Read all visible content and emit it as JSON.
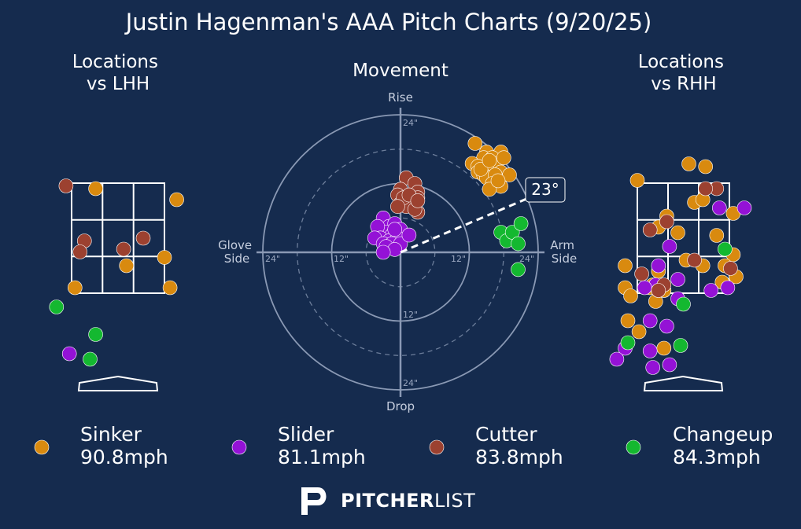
{
  "title": "Justin Hagenman's AAA Pitch Charts (9/20/25)",
  "colors": {
    "background": "#152b4e",
    "Sinker": "#d98a0f",
    "Slider": "#9412d6",
    "Cutter": "#9c4130",
    "Changeup": "#14b830"
  },
  "legend": [
    {
      "pitch": "Sinker",
      "velo": "90.8mph"
    },
    {
      "pitch": "Slider",
      "velo": "81.1mph"
    },
    {
      "pitch": "Cutter",
      "velo": "83.8mph"
    },
    {
      "pitch": "Changeup",
      "velo": "84.3mph"
    }
  ],
  "brand": "PITCHERLIST",
  "brand_parts": [
    "PITCHER",
    "LIST"
  ],
  "brand_icon": "pitcherlist-logo-icon",
  "chart_data": [
    {
      "type": "scatter",
      "title_lines": [
        "Locations",
        "vs LHH"
      ],
      "units": "feet",
      "xlim": [
        -2.0,
        2.0
      ],
      "ylim": [
        0.0,
        5.0
      ],
      "strike_zone": {
        "x": [
          -0.83,
          0.83
        ],
        "z": [
          1.5,
          3.5
        ]
      },
      "series": [
        {
          "name": "Sinker",
          "points": [
            [
              -0.4,
              3.4
            ],
            [
              1.05,
              3.2
            ],
            [
              0.83,
              2.15
            ],
            [
              0.15,
              2.0
            ],
            [
              -0.77,
              1.6
            ],
            [
              0.93,
              1.6
            ]
          ]
        },
        {
          "name": "Slider",
          "points": [
            [
              -0.87,
              0.4
            ]
          ]
        },
        {
          "name": "Cutter",
          "points": [
            [
              -0.93,
              3.45
            ],
            [
              -0.6,
              2.45
            ],
            [
              0.45,
              2.5
            ],
            [
              0.1,
              2.3
            ],
            [
              -0.68,
              2.25
            ]
          ]
        },
        {
          "name": "Changeup",
          "points": [
            [
              -1.1,
              1.25
            ],
            [
              -0.4,
              0.75
            ],
            [
              -0.5,
              0.3
            ]
          ]
        }
      ]
    },
    {
      "type": "scatter",
      "title": "Movement",
      "units": "inches",
      "axis_labels": {
        "top": "Rise",
        "bottom": "Drop",
        "left": [
          "Glove",
          "Side"
        ],
        "right": [
          "Arm",
          "Side"
        ]
      },
      "rings": [
        6,
        12,
        18,
        24
      ],
      "ring_labels": [
        "12\"",
        "24\""
      ],
      "ticks": {
        "top": "24\"",
        "bottom_inner": "12\"",
        "bottom": "24\"",
        "left_outer": "24\"",
        "left_inner": "12\"",
        "right_inner": "12\"",
        "right_outer": "24\""
      },
      "arm_angle_label": "23°",
      "arm_angle_deg": 23,
      "series": [
        {
          "name": "Sinker",
          "points": [
            [
              13,
              19
            ],
            [
              15,
              17.5
            ],
            [
              17.5,
              17.5
            ],
            [
              14.5,
              16.5
            ],
            [
              16,
              16.5
            ],
            [
              16.5,
              15.5
            ],
            [
              18,
              16.5
            ],
            [
              12.5,
              15.5
            ],
            [
              13.5,
              15
            ],
            [
              15,
              14.5
            ],
            [
              17.5,
              14
            ],
            [
              19,
              13.5
            ],
            [
              13.5,
              14
            ],
            [
              14.5,
              13.5
            ],
            [
              15,
              13
            ],
            [
              16.5,
              13.5
            ],
            [
              16,
              12
            ],
            [
              17.5,
              11.5
            ],
            [
              15.5,
              11
            ],
            [
              17,
              12.5
            ],
            [
              14,
              14.5
            ],
            [
              15.5,
              16
            ]
          ]
        },
        {
          "name": "Slider",
          "points": [
            [
              -3,
              6
            ],
            [
              -2,
              4.5
            ],
            [
              -1,
              5
            ],
            [
              -2.5,
              3.5
            ],
            [
              -4,
              4.5
            ],
            [
              -1.5,
              3
            ],
            [
              0,
              4
            ],
            [
              -3.5,
              2.5
            ],
            [
              -2,
              2
            ],
            [
              -0.5,
              2.5
            ],
            [
              -4.5,
              2.5
            ],
            [
              -3,
              1.5
            ],
            [
              -1.5,
              1.5
            ],
            [
              0,
              1.5
            ],
            [
              -2.5,
              1
            ],
            [
              -1,
              0.5
            ],
            [
              -3,
              0
            ],
            [
              1.5,
              3
            ],
            [
              -1,
              4
            ]
          ]
        },
        {
          "name": "Cutter",
          "points": [
            [
              1,
              13
            ],
            [
              0,
              11
            ],
            [
              -0.5,
              10
            ],
            [
              2.5,
              12
            ],
            [
              3,
              10.5
            ],
            [
              3,
              9.5
            ],
            [
              2,
              9
            ],
            [
              0,
              8.5
            ],
            [
              1,
              8
            ],
            [
              3,
              7
            ],
            [
              2.5,
              7.5
            ],
            [
              0.5,
              9.5
            ],
            [
              -0.5,
              8
            ],
            [
              1.5,
              10
            ],
            [
              3,
              9
            ]
          ]
        },
        {
          "name": "Changeup",
          "points": [
            [
              17.5,
              3.5
            ],
            [
              18.5,
              2
            ],
            [
              19.5,
              3.5
            ],
            [
              20.5,
              1.5
            ],
            [
              21,
              5
            ],
            [
              20.5,
              -3
            ]
          ]
        }
      ]
    },
    {
      "type": "scatter",
      "title_lines": [
        "Locations",
        "vs RHH"
      ],
      "units": "feet",
      "xlim": [
        -2.0,
        2.0
      ],
      "ylim": [
        0.0,
        5.0
      ],
      "strike_zone": {
        "x": [
          -0.83,
          0.83
        ],
        "z": [
          1.5,
          3.5
        ]
      },
      "series": [
        {
          "name": "Sinker",
          "points": [
            [
              0.1,
              3.85
            ],
            [
              0.4,
              3.8
            ],
            [
              -0.83,
              3.55
            ],
            [
              0.2,
              3.15
            ],
            [
              0.35,
              3.2
            ],
            [
              -0.3,
              2.9
            ],
            [
              0.9,
              2.95
            ],
            [
              -0.45,
              2.7
            ],
            [
              -0.1,
              2.6
            ],
            [
              0.6,
              2.55
            ],
            [
              0.9,
              2.2
            ],
            [
              0.75,
              2.0
            ],
            [
              -1.05,
              2.0
            ],
            [
              -0.45,
              1.9
            ],
            [
              -0.35,
              1.55
            ],
            [
              0.05,
              2.1
            ],
            [
              0.35,
              2.0
            ],
            [
              0.7,
              1.7
            ],
            [
              0.95,
              1.8
            ],
            [
              -1.05,
              1.6
            ],
            [
              -0.5,
              1.35
            ],
            [
              -0.95,
              1.45
            ],
            [
              -0.6,
              1.6
            ],
            [
              -1.0,
              1.0
            ],
            [
              -0.8,
              0.8
            ],
            [
              -0.35,
              0.5
            ],
            [
              -0.55,
              1.65
            ],
            [
              -0.35,
              1.55
            ]
          ]
        },
        {
          "name": "Slider",
          "points": [
            [
              0.65,
              3.05
            ],
            [
              1.1,
              3.05
            ],
            [
              -0.25,
              2.35
            ],
            [
              -0.45,
              2.0
            ],
            [
              -0.1,
              1.75
            ],
            [
              -0.5,
              1.65
            ],
            [
              -0.7,
              1.6
            ],
            [
              -0.45,
              1.55
            ],
            [
              -0.1,
              1.4
            ],
            [
              0.5,
              1.55
            ],
            [
              0.8,
              1.6
            ],
            [
              -0.6,
              1.0
            ],
            [
              -0.3,
              0.9
            ],
            [
              -1.05,
              0.5
            ],
            [
              -0.6,
              0.45
            ],
            [
              -0.25,
              0.2
            ],
            [
              -0.55,
              0.15
            ],
            [
              -1.2,
              0.3
            ]
          ]
        },
        {
          "name": "Cutter",
          "points": [
            [
              0.6,
              3.4
            ],
            [
              -0.3,
              2.8
            ],
            [
              -0.6,
              2.65
            ],
            [
              0.2,
              2.1
            ],
            [
              -0.75,
              1.85
            ],
            [
              0.85,
              1.95
            ],
            [
              -0.35,
              1.65
            ],
            [
              -0.45,
              1.55
            ],
            [
              0.4,
              3.4
            ]
          ]
        },
        {
          "name": "Changeup",
          "points": [
            [
              0.75,
              2.3
            ],
            [
              0.0,
              1.3
            ],
            [
              -0.05,
              0.55
            ],
            [
              -1.0,
              0.6
            ]
          ]
        }
      ]
    }
  ]
}
